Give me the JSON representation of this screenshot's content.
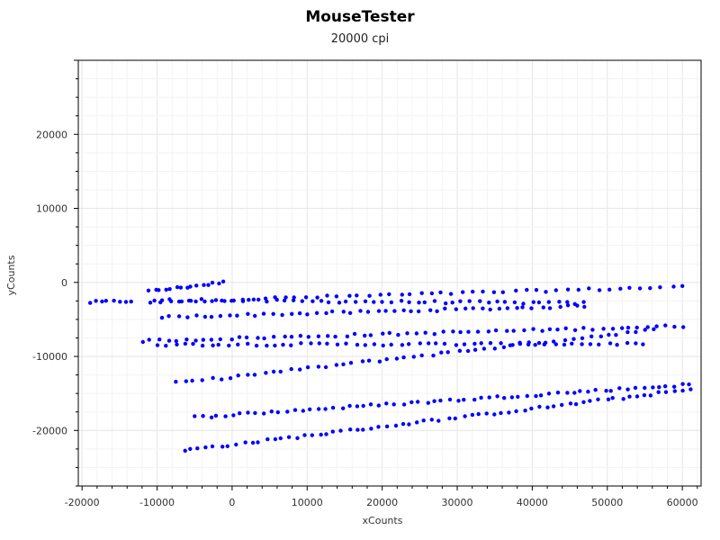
{
  "chart_data": {
    "type": "scatter",
    "title": "MouseTester",
    "subtitle": "20000 cpi",
    "xlabel": "xCounts",
    "ylabel": "yCounts",
    "xlim": [
      -20500,
      62500
    ],
    "ylim": [
      -27500,
      30000
    ],
    "xticks": [
      -20000,
      -10000,
      0,
      10000,
      20000,
      30000,
      40000,
      50000,
      60000
    ],
    "yticks": [
      -20000,
      -10000,
      0,
      10000,
      20000
    ],
    "grid": true,
    "marker_color": "#0000ff",
    "segments": [
      {
        "x0": -19000,
        "y0": -2700,
        "x1": -13500,
        "y1": -2500,
        "n": 8
      },
      {
        "x0": -11000,
        "y0": -1200,
        "x1": -1200,
        "y1": 0,
        "n": 15
      },
      {
        "x0": -11000,
        "y0": -2600,
        "x1": 60000,
        "y1": -600,
        "n": 52
      },
      {
        "x0": -10500,
        "y0": -2400,
        "x1": 47000,
        "y1": -2800,
        "n": 50
      },
      {
        "x0": -9500,
        "y0": -4700,
        "x1": 47000,
        "y1": -3200,
        "n": 50
      },
      {
        "x0": -12000,
        "y0": -7900,
        "x1": 60000,
        "y1": -5900,
        "n": 62
      },
      {
        "x0": -10000,
        "y0": -8400,
        "x1": 55000,
        "y1": -8300,
        "n": 55
      },
      {
        "x0": -7500,
        "y0": -13600,
        "x1": 56000,
        "y1": -6400,
        "n": 55
      },
      {
        "x0": -5000,
        "y0": -18200,
        "x1": 61000,
        "y1": -13800,
        "n": 65
      },
      {
        "x0": -6500,
        "y0": -22700,
        "x1": 61000,
        "y1": -14500,
        "n": 68
      }
    ]
  }
}
